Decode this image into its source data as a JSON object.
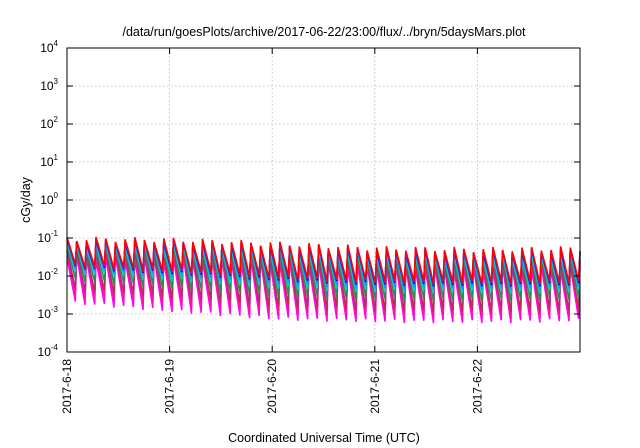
{
  "chart_data": {
    "type": "line",
    "title": "/data/run/goesPlots/archive/2017-06-22/23:00/flux/../bryn/5daysMars.plot",
    "xlabel": "Coordinated Universal Time (UTC)",
    "ylabel": "cGy/day",
    "yscale": "log",
    "ylim": [
      0.0001,
      10000
    ],
    "y_ticks": [
      {
        "base": "10",
        "exp": "4"
      },
      {
        "base": "10",
        "exp": "3"
      },
      {
        "base": "10",
        "exp": "2"
      },
      {
        "base": "10",
        "exp": "1"
      },
      {
        "base": "10",
        "exp": "0"
      },
      {
        "base": "10",
        "exp": "-1"
      },
      {
        "base": "10",
        "exp": "-2"
      },
      {
        "base": "10",
        "exp": "-3"
      },
      {
        "base": "10",
        "exp": "-4"
      }
    ],
    "xlim": [
      "2017-6-18",
      "2017-6-23"
    ],
    "x_ticks": [
      "2017-6-18",
      "2017-6-19",
      "2017-6-20",
      "2017-6-21",
      "2017-6-22"
    ],
    "grid": true,
    "legend": "none",
    "sawtooth_periods_per_day": 10.5,
    "series": [
      {
        "color": "#ff00ff",
        "peak": [
          0.03,
          0.03,
          0.025,
          0.018,
          0.016,
          0.017
        ],
        "trough": [
          0.002,
          0.0012,
          0.00075,
          0.00065,
          0.00062,
          0.00068
        ]
      },
      {
        "color": "#ff1493",
        "peak": [
          0.04,
          0.038,
          0.03,
          0.022,
          0.02,
          0.021
        ],
        "trough": [
          0.003,
          0.0018,
          0.0011,
          0.0009,
          0.00085,
          0.0009
        ]
      },
      {
        "color": "#b03060",
        "peak": [
          0.045,
          0.044,
          0.035,
          0.026,
          0.023,
          0.025
        ],
        "trough": [
          0.0045,
          0.0028,
          0.0016,
          0.0013,
          0.0012,
          0.0013
        ]
      },
      {
        "color": "#2e8b57",
        "peak": [
          0.055,
          0.052,
          0.042,
          0.03,
          0.027,
          0.03
        ],
        "trough": [
          0.008,
          0.005,
          0.003,
          0.0025,
          0.0023,
          0.0025
        ]
      },
      {
        "color": "#00ced1",
        "peak": [
          0.065,
          0.062,
          0.05,
          0.036,
          0.032,
          0.035
        ],
        "trough": [
          0.012,
          0.008,
          0.005,
          0.004,
          0.0038,
          0.004
        ]
      },
      {
        "color": "#1e90ff",
        "peak": [
          0.075,
          0.072,
          0.058,
          0.042,
          0.038,
          0.042
        ],
        "trough": [
          0.015,
          0.01,
          0.0065,
          0.005,
          0.0048,
          0.005
        ]
      },
      {
        "color": "#0000cd",
        "peak": [
          0.085,
          0.082,
          0.065,
          0.048,
          0.044,
          0.048
        ],
        "trough": [
          0.017,
          0.012,
          0.008,
          0.0062,
          0.0058,
          0.006
        ]
      },
      {
        "color": "#8a2be2",
        "peak": [
          0.092,
          0.088,
          0.07,
          0.052,
          0.048,
          0.052
        ],
        "trough": [
          0.018,
          0.013,
          0.0088,
          0.0068,
          0.0064,
          0.0066
        ]
      },
      {
        "color": "#ff0000",
        "peak": [
          0.095,
          0.09,
          0.072,
          0.054,
          0.05,
          0.054
        ],
        "trough": [
          0.019,
          0.014,
          0.0092,
          0.0072,
          0.0068,
          0.007
        ]
      }
    ]
  }
}
